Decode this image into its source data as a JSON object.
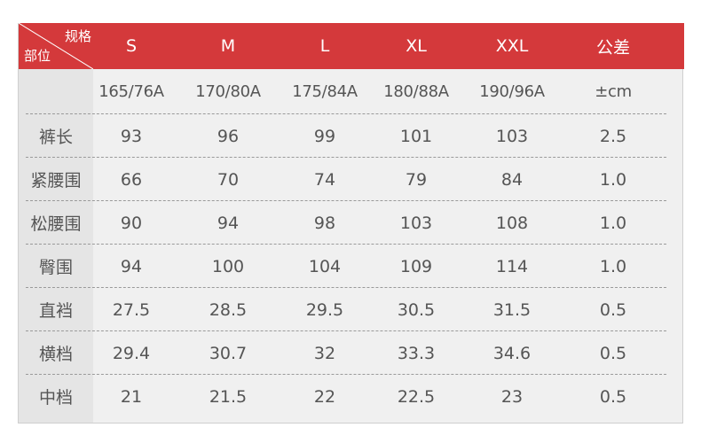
{
  "header": {
    "corner_top": "规格",
    "corner_bottom": "部位",
    "columns": [
      "S",
      "M",
      "L",
      "XL",
      "XXL",
      "公差"
    ]
  },
  "size_row": [
    "165/76A",
    "170/80A",
    "175/84A",
    "180/88A",
    "190/96A",
    "±cm"
  ],
  "rows": [
    {
      "label": "裤长",
      "values": [
        "93",
        "96",
        "99",
        "101",
        "103",
        "2.5"
      ]
    },
    {
      "label": "紧腰围",
      "values": [
        "66",
        "70",
        "74",
        "79",
        "84",
        "1.0"
      ]
    },
    {
      "label": "松腰围",
      "values": [
        "90",
        "94",
        "98",
        "103",
        "108",
        "1.0"
      ]
    },
    {
      "label": "臀围",
      "values": [
        "94",
        "100",
        "104",
        "109",
        "114",
        "1.0"
      ]
    },
    {
      "label": "直裆",
      "values": [
        "27.5",
        "28.5",
        "29.5",
        "30.5",
        "31.5",
        "0.5"
      ]
    },
    {
      "label": "横档",
      "values": [
        "29.4",
        "30.7",
        "32",
        "33.3",
        "34.6",
        "0.5"
      ]
    },
    {
      "label": "中档",
      "values": [
        "21",
        "21.5",
        "22",
        "22.5",
        "23",
        "0.5"
      ]
    }
  ],
  "colors": {
    "header": "#d4393b",
    "body": "#f0f0f0",
    "label_column": "#e5e5e5"
  }
}
